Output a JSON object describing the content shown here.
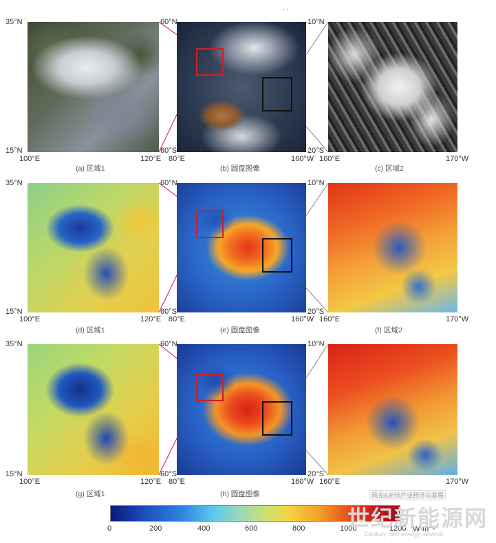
{
  "top_mark": "· ·",
  "rows": [
    {
      "panels": [
        {
          "caption": "(a) 区域1",
          "lat_top": "35°N",
          "lat_bottom": "15°N",
          "lon_left": "100°E",
          "lon_right": "120°E"
        },
        {
          "caption": "(b) 圆盘图像",
          "lat_top": "60°N",
          "lat_bottom": "60°S",
          "lon_left": "80°E",
          "lon_right": "160°W"
        },
        {
          "caption": "(c) 区域2",
          "lat_top": "10°N",
          "lat_bottom": "20°S",
          "lon_left": "160°E",
          "lon_right": "170°W"
        }
      ]
    },
    {
      "panels": [
        {
          "caption": "(d) 区域1",
          "lat_top": "35°N",
          "lat_bottom": "15°N",
          "lon_left": "100°E",
          "lon_right": "120°E"
        },
        {
          "caption": "(e) 圆盘图像",
          "lat_top": "60°N",
          "lat_bottom": "60°S",
          "lon_left": "80°E",
          "lon_right": "160°W"
        },
        {
          "caption": "(f) 区域2",
          "lat_top": "10°N",
          "lat_bottom": "20°S",
          "lon_left": "160°E",
          "lon_right": "170°W"
        }
      ]
    },
    {
      "panels": [
        {
          "caption": "(g) 区域1",
          "lat_top": "35°N",
          "lat_bottom": "15°N",
          "lon_left": "100°E",
          "lon_right": "120°E"
        },
        {
          "caption": "(h) 圆盘图像",
          "lat_top": "60°N",
          "lat_bottom": "60°S",
          "lon_left": "80°E",
          "lon_right": "160°W"
        },
        {
          "caption": "",
          "lat_top": "10°N",
          "lat_bottom": "20°S",
          "lon_left": "160°E",
          "lon_right": "170°W"
        }
      ]
    }
  ],
  "colorbar": {
    "ticks": [
      "0",
      "200",
      "400",
      "600",
      "800",
      "1000",
      "1200"
    ],
    "unit": "W·m⁻²"
  },
  "watermark": {
    "main": "世纪新能源网",
    "sub": "Century new energy network",
    "tag": "风光&光伏产业经济与发展"
  },
  "colors": {
    "region1_box": "#c8202a",
    "region2_box": "#111111"
  }
}
